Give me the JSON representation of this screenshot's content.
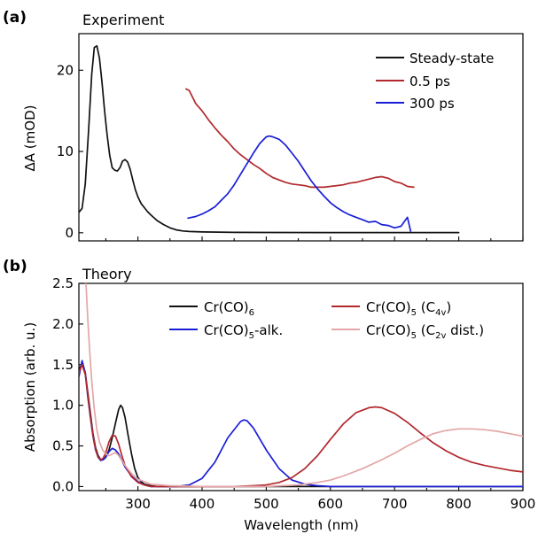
{
  "colors": {
    "steady": "#111111",
    "ps05": "#b2282c",
    "ps300": "#1a1fd6",
    "cr6": "#111111",
    "alk": "#1a1fd6",
    "c4v": "#b2282c",
    "c2v": "#e4a6a8"
  },
  "chart_data": [
    {
      "panel_label": "(a)",
      "type": "line",
      "title": "Experiment",
      "xlabel": "",
      "ylabel": "ΔA (mOD)",
      "xlim": [
        208,
        900
      ],
      "ylim": [
        -1.0,
        24.5
      ],
      "yticks": [
        0,
        10,
        20
      ],
      "xticks": [
        300,
        400,
        500,
        600,
        700,
        800,
        900
      ],
      "legend_position": "top-right",
      "series": [
        {
          "name": "Steady-state",
          "color_key": "steady",
          "x": [
            208,
            213,
            218,
            223,
            228,
            232,
            236,
            240,
            244,
            248,
            252,
            256,
            260,
            264,
            268,
            272,
            276,
            280,
            284,
            288,
            292,
            296,
            300,
            305,
            310,
            315,
            320,
            330,
            340,
            350,
            360,
            370,
            380,
            400,
            450,
            500,
            600,
            700,
            800
          ],
          "y": [
            2.5,
            3.0,
            6.0,
            12.5,
            19.5,
            22.8,
            23.0,
            21.5,
            18.5,
            15.0,
            12.0,
            9.5,
            8.0,
            7.7,
            7.6,
            8.0,
            8.8,
            9.0,
            8.7,
            7.8,
            6.5,
            5.3,
            4.4,
            3.6,
            3.1,
            2.6,
            2.2,
            1.5,
            1.0,
            0.6,
            0.35,
            0.22,
            0.15,
            0.1,
            0.05,
            0.03,
            0.02,
            0.02,
            0.02
          ]
        },
        {
          "name": "0.5 ps",
          "color_key": "ps05",
          "x": [
            375,
            380,
            390,
            400,
            410,
            420,
            430,
            440,
            450,
            460,
            470,
            480,
            490,
            500,
            510,
            520,
            530,
            540,
            550,
            560,
            570,
            580,
            590,
            600,
            610,
            620,
            630,
            640,
            650,
            660,
            670,
            680,
            690,
            700,
            710,
            720,
            730
          ],
          "y": [
            17.7,
            17.5,
            15.9,
            15.0,
            13.9,
            12.9,
            12.0,
            11.2,
            10.3,
            9.6,
            9.0,
            8.4,
            7.9,
            7.3,
            6.8,
            6.5,
            6.2,
            6.0,
            5.9,
            5.8,
            5.6,
            5.6,
            5.6,
            5.7,
            5.8,
            5.9,
            6.1,
            6.2,
            6.4,
            6.6,
            6.8,
            6.9,
            6.7,
            6.3,
            6.1,
            5.7,
            5.6
          ]
        },
        {
          "name": "300 ps",
          "color_key": "ps300",
          "x": [
            378,
            390,
            400,
            410,
            420,
            430,
            440,
            450,
            460,
            470,
            480,
            490,
            500,
            505,
            510,
            520,
            530,
            540,
            550,
            560,
            570,
            580,
            590,
            600,
            610,
            620,
            630,
            640,
            650,
            660,
            670,
            680,
            690,
            700,
            710,
            720,
            725
          ],
          "y": [
            1.8,
            2.0,
            2.3,
            2.7,
            3.2,
            4.0,
            4.8,
            5.9,
            7.2,
            8.5,
            9.8,
            11.0,
            11.8,
            11.9,
            11.8,
            11.5,
            10.8,
            9.8,
            8.8,
            7.6,
            6.4,
            5.4,
            4.5,
            3.7,
            3.1,
            2.6,
            2.2,
            1.9,
            1.6,
            1.3,
            1.4,
            1.0,
            0.9,
            0.6,
            0.8,
            1.9,
            0.2
          ]
        }
      ]
    },
    {
      "panel_label": "(b)",
      "type": "line",
      "title": "Theory",
      "xlabel": "Wavelength (nm)",
      "ylabel": "Absorption (arb. u.)",
      "xlim": [
        208,
        900
      ],
      "ylim": [
        -0.05,
        2.5
      ],
      "yticks": [
        0.0,
        0.5,
        1.0,
        1.5,
        2.0,
        2.5
      ],
      "ytick_labels": [
        "0.0",
        "0.5",
        "1.0",
        "1.5",
        "2.0",
        "2.5"
      ],
      "xticks": [
        300,
        400,
        500,
        600,
        700,
        800,
        900
      ],
      "legend_columns": 2,
      "series": [
        {
          "name": "Cr(CO)",
          "name_sub": "6",
          "name_tail": "",
          "color_key": "cr6",
          "x": [
            208,
            213,
            218,
            222,
            226,
            230,
            234,
            238,
            242,
            246,
            250,
            255,
            260,
            265,
            270,
            273,
            276,
            280,
            285,
            290,
            295,
            300,
            305,
            310,
            320,
            330,
            340,
            360,
            400,
            500,
            600,
            700,
            800,
            900
          ],
          "y": [
            1.45,
            1.5,
            1.4,
            1.15,
            0.9,
            0.65,
            0.48,
            0.38,
            0.33,
            0.33,
            0.36,
            0.45,
            0.6,
            0.78,
            0.95,
            1.0,
            0.97,
            0.85,
            0.62,
            0.4,
            0.22,
            0.11,
            0.06,
            0.03,
            0.01,
            0.0,
            0.0,
            0.0,
            0.0,
            0.0,
            0.0,
            0.0,
            0.0,
            0.0
          ]
        },
        {
          "name": "Cr(CO)",
          "name_sub": "5",
          "name_tail": "-alk.",
          "color_key": "alk",
          "x": [
            208,
            213,
            218,
            222,
            226,
            230,
            234,
            238,
            242,
            246,
            250,
            255,
            260,
            265,
            270,
            275,
            280,
            290,
            300,
            310,
            320,
            340,
            360,
            380,
            400,
            420,
            440,
            460,
            465,
            470,
            480,
            500,
            520,
            540,
            560,
            580,
            600,
            650,
            700,
            800,
            900
          ],
          "y": [
            1.35,
            1.55,
            1.4,
            1.1,
            0.85,
            0.62,
            0.45,
            0.36,
            0.32,
            0.33,
            0.37,
            0.43,
            0.47,
            0.45,
            0.4,
            0.32,
            0.24,
            0.13,
            0.06,
            0.02,
            0.0,
            0.0,
            0.0,
            0.02,
            0.1,
            0.3,
            0.6,
            0.8,
            0.82,
            0.81,
            0.72,
            0.45,
            0.22,
            0.08,
            0.03,
            0.01,
            0.0,
            0.0,
            0.0,
            0.0,
            0.0
          ]
        },
        {
          "name": "Cr(CO)",
          "name_sub": "5",
          "name_tail": " (C4v)",
          "name_tail_parts": [
            " (C",
            "4v",
            ")"
          ],
          "color_key": "c4v",
          "x": [
            208,
            213,
            218,
            222,
            226,
            230,
            234,
            238,
            242,
            246,
            250,
            255,
            260,
            265,
            270,
            275,
            280,
            290,
            300,
            310,
            320,
            340,
            360,
            400,
            450,
            480,
            500,
            520,
            540,
            560,
            580,
            600,
            620,
            640,
            660,
            670,
            680,
            700,
            720,
            740,
            760,
            780,
            800,
            820,
            840,
            860,
            880,
            900
          ],
          "y": [
            1.4,
            1.5,
            1.38,
            1.12,
            0.86,
            0.63,
            0.46,
            0.36,
            0.33,
            0.35,
            0.42,
            0.55,
            0.63,
            0.62,
            0.52,
            0.38,
            0.26,
            0.12,
            0.05,
            0.02,
            0.0,
            0.0,
            0.0,
            0.0,
            0.0,
            0.01,
            0.02,
            0.05,
            0.11,
            0.22,
            0.38,
            0.58,
            0.77,
            0.91,
            0.97,
            0.98,
            0.97,
            0.9,
            0.79,
            0.66,
            0.54,
            0.44,
            0.36,
            0.3,
            0.26,
            0.23,
            0.2,
            0.18
          ]
        },
        {
          "name": "Cr(CO)",
          "name_sub": "5",
          "name_tail": " (C2v dist.)",
          "name_tail_parts": [
            " (C",
            "2v",
            " dist.)"
          ],
          "color_key": "c2v",
          "x": [
            219,
            222,
            225,
            228,
            232,
            236,
            240,
            245,
            250,
            255,
            260,
            265,
            270,
            280,
            290,
            300,
            320,
            350,
            400,
            450,
            500,
            550,
            580,
            600,
            620,
            650,
            680,
            700,
            720,
            740,
            760,
            780,
            800,
            820,
            840,
            860,
            880,
            900
          ],
          "y": [
            2.5,
            2.05,
            1.65,
            1.3,
            0.95,
            0.7,
            0.55,
            0.45,
            0.4,
            0.38,
            0.4,
            0.42,
            0.38,
            0.26,
            0.16,
            0.09,
            0.03,
            0.01,
            0.0,
            0.0,
            0.0,
            0.02,
            0.05,
            0.08,
            0.13,
            0.22,
            0.33,
            0.41,
            0.5,
            0.58,
            0.65,
            0.69,
            0.71,
            0.71,
            0.7,
            0.68,
            0.65,
            0.62
          ]
        }
      ]
    }
  ]
}
